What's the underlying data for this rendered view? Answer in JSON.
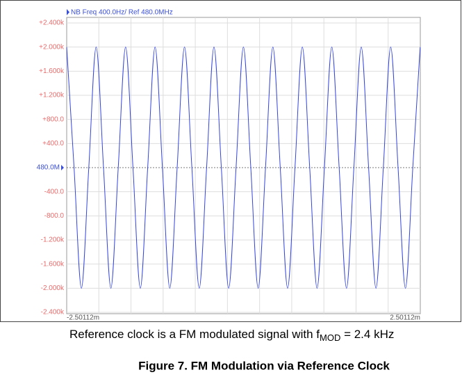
{
  "chart_data": {
    "type": "line",
    "title": "NB Freq 400.0Hz/ Ref 480.0MHz",
    "x": [
      -0.00250112,
      -0.00239695,
      -0.00229279,
      -0.00218862,
      -0.00208445,
      -0.00198029,
      -0.00187612,
      -0.00177195,
      -0.00166779,
      -0.00156362,
      -0.00145945,
      -0.00135528,
      -0.00125112,
      -0.00114695,
      -0.00104279,
      -0.00093862,
      -0.00083445,
      -0.00073029,
      -0.00062612,
      -0.00052195,
      -0.00041779,
      -0.00031362,
      -0.00020945,
      -0.00010529,
      -1.12e-06,
      0.00010305,
      0.00020721,
      0.00031138,
      0.00041555,
      0.00051971,
      0.00062388,
      0.00072805,
      0.00083221,
      0.00093638,
      0.00104055,
      0.00114471,
      0.00124888,
      0.00135305,
      0.00145721,
      0.00156138,
      0.00166555,
      0.00176971,
      0.00187388,
      0.00197805,
      0.00208221,
      0.00218638,
      0.00229055,
      0.00239471,
      0.00249888
    ],
    "series": [
      {
        "color": "#3344dd",
        "values": [
          2000,
          0,
          -2000,
          0,
          2000,
          0,
          -2000,
          0,
          2000,
          0,
          -2000,
          0,
          2000,
          0,
          -2000,
          0,
          2000,
          0,
          -2000,
          0,
          2000,
          0,
          -2000,
          0,
          2000,
          0,
          -2000,
          0,
          2000,
          0,
          -2000,
          0,
          2000,
          0,
          -2000,
          0,
          2000,
          0,
          -2000,
          0,
          2000,
          0,
          -2000,
          0,
          2000,
          0,
          -2000,
          0,
          2000
        ]
      }
    ],
    "xlim": [
      -0.00250112,
      0.00250112
    ],
    "xticks": [
      {
        "value": -0.00250112,
        "label": "-2.50112m"
      },
      {
        "value": 0.00250112,
        "label": "2.50112m"
      }
    ],
    "ylim": [
      -2400,
      2400
    ],
    "yticks": [
      {
        "value": 2400,
        "label": "+2.400k"
      },
      {
        "value": 2000,
        "label": "+2.000k"
      },
      {
        "value": 1600,
        "label": "+1.600k"
      },
      {
        "value": 1200,
        "label": "+1.200k"
      },
      {
        "value": 800,
        "label": "+800.0"
      },
      {
        "value": 400,
        "label": "+400.0"
      },
      {
        "value": 0,
        "label": "480.0M"
      },
      {
        "value": -400,
        "label": "-400.0"
      },
      {
        "value": -800,
        "label": "-800.0"
      },
      {
        "value": -1200,
        "label": "-1.200k"
      },
      {
        "value": -1600,
        "label": "-1.600k"
      },
      {
        "value": -2000,
        "label": "-2.000k"
      },
      {
        "value": -2400,
        "label": "-2.400k"
      }
    ],
    "reference_tick": 0,
    "grid": true,
    "caption": {
      "text": "Reference clock is a FM modulated signal with f",
      "subscript": "MOD",
      "tail": " = 2.4 kHz"
    },
    "figure_caption": "Figure 7. FM Modulation via Reference Clock"
  }
}
